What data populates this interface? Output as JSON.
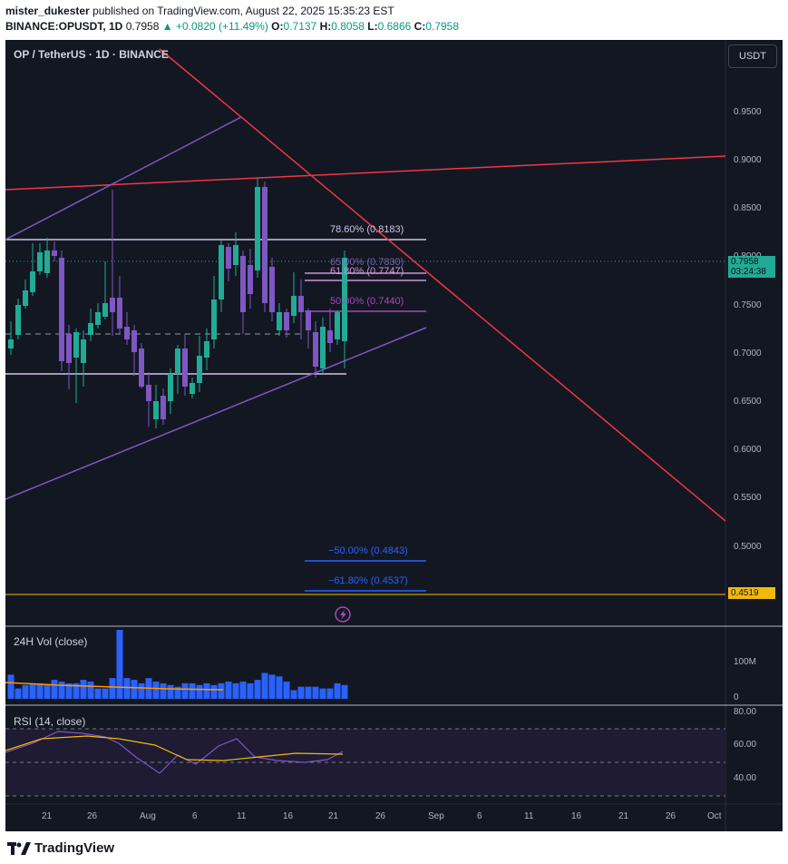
{
  "header": {
    "publisher": "mister_dukester",
    "published_text": "published on TradingView.com, August 22, 2025 15:35:23 EST",
    "symbol_full": "BINANCE:OPUSDT, 1D",
    "price": "0.7958",
    "change": "▲ +0.0820 (+11.49%)",
    "o_label": "O:",
    "o": "0.7137",
    "h_label": "H:",
    "h": "0.8058",
    "l_label": "L:",
    "l": "0.6866",
    "c_label": "C:",
    "c": "0.7958"
  },
  "chart": {
    "symbol_title": "OP / TetherUS · 1D · BINANCE",
    "currency_button": "USDT",
    "price_axis": [
      "0.9500",
      "0.9000",
      "0.8500",
      "0.8000",
      "0.7500",
      "0.7000",
      "0.6500",
      "0.6000",
      "0.5500",
      "0.5000"
    ],
    "last_price": "0.7958",
    "countdown": "03:24:38",
    "level_badge": "0.4519",
    "fib_labels": [
      {
        "text": "78.60% (0.8183)"
      },
      {
        "text": "65.00% (0.7830)"
      },
      {
        "text": "61.80% (0.7747)"
      },
      {
        "text": "50.00% (0.7440)"
      },
      {
        "text": "−50.00% (0.4843)"
      },
      {
        "text": "−61.80% (0.4537)"
      }
    ],
    "volume_title": "24H Vol (close)",
    "volume_axis": [
      "100M",
      "0"
    ],
    "rsi_title": "RSI (14, close)",
    "rsi_axis": [
      "80.00",
      "60.00",
      "40.00"
    ],
    "time_axis": [
      "21",
      "26",
      "Aug",
      "6",
      "11",
      "16",
      "21",
      "26",
      "Sep",
      "6",
      "11",
      "16",
      "21",
      "26",
      "Oct"
    ],
    "colors": {
      "up": "#22ab94",
      "down": "#7e57c2",
      "trend_red": "#f23645",
      "channel": "#7e57c2",
      "level": "#f0b90b",
      "fib_blue": "#2962ff"
    }
  },
  "footer": {
    "brand": "TradingView"
  }
}
